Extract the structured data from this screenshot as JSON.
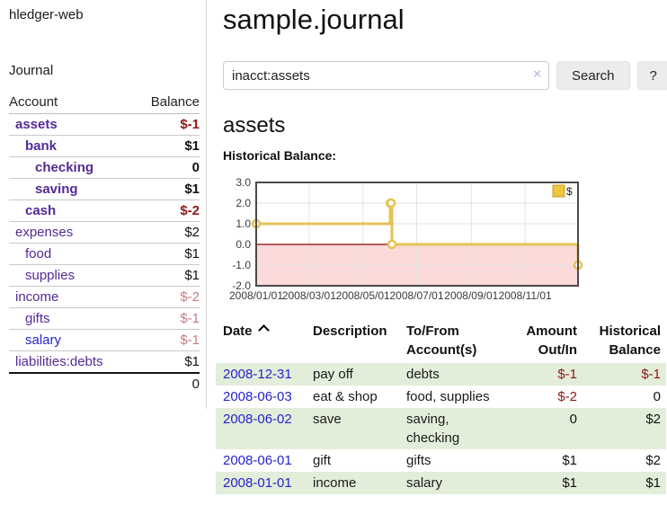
{
  "colors": {
    "link_purple": "#542a96",
    "link_blue": "#2323cc",
    "neg_strong": "#8f1717",
    "neg_faded": "#c47f7f",
    "text_normal": "#111111",
    "row_green": "#e2eeda",
    "chart_line": "#e6c155",
    "chart_fill_negative": "#fbdada",
    "zero_line": "#8f0000",
    "legend_fill": "#ecc73f",
    "legend_border": "#c99a2e"
  },
  "sidebar": {
    "app_title": "hledger-web",
    "journal_link": "Journal",
    "accounts": {
      "headers": {
        "account": "Account",
        "balance": "Balance"
      },
      "rows": [
        {
          "account": "assets",
          "balance": "$-1",
          "level": 0,
          "emphasis": true,
          "account_color": "purple",
          "balance_tone": "neg_strong"
        },
        {
          "account": "bank",
          "balance": "$1",
          "level": 1,
          "emphasis": true,
          "account_color": "purple",
          "balance_tone": "normal"
        },
        {
          "account": "checking",
          "balance": "0",
          "level": 2,
          "emphasis": true,
          "account_color": "purple",
          "balance_tone": "normal"
        },
        {
          "account": "saving",
          "balance": "$1",
          "level": 2,
          "emphasis": true,
          "account_color": "purple",
          "balance_tone": "normal"
        },
        {
          "account": "cash",
          "balance": "$-2",
          "level": 1,
          "emphasis": true,
          "account_color": "purple",
          "balance_tone": "neg_strong"
        },
        {
          "account": "expenses",
          "balance": "$2",
          "level": 0,
          "emphasis": false,
          "account_color": "purple",
          "balance_tone": "normal"
        },
        {
          "account": "food",
          "balance": "$1",
          "level": 1,
          "emphasis": false,
          "account_color": "purple",
          "balance_tone": "normal"
        },
        {
          "account": "supplies",
          "balance": "$1",
          "level": 1,
          "emphasis": false,
          "account_color": "purple",
          "balance_tone": "normal"
        },
        {
          "account": "income",
          "balance": "$-2",
          "level": 0,
          "emphasis": false,
          "account_color": "purple",
          "balance_tone": "neg_faded"
        },
        {
          "account": "gifts",
          "balance": "$-1",
          "level": 1,
          "emphasis": false,
          "account_color": "purple",
          "balance_tone": "neg_faded"
        },
        {
          "account": "salary",
          "balance": "$-1",
          "level": 1,
          "emphasis": false,
          "account_color": "blue",
          "balance_tone": "neg_faded"
        },
        {
          "account": "liabilities:debts",
          "balance": "$1",
          "level": 0,
          "emphasis": false,
          "account_color": "purple",
          "balance_tone": "normal"
        }
      ],
      "total": "0"
    }
  },
  "main": {
    "title": "sample.journal",
    "search": {
      "value": "inacct:assets",
      "clear_icon": "×",
      "search_button": "Search",
      "help_button": "?"
    },
    "account_heading": "assets",
    "chart_heading": "Historical Balance:"
  },
  "chart_data": {
    "type": "line",
    "title": "Historical Balance",
    "step": true,
    "series": [
      {
        "name": "$",
        "points": [
          [
            "2008-01-01",
            1
          ],
          [
            "2008-06-01",
            2
          ],
          [
            "2008-06-02",
            2
          ],
          [
            "2008-06-03",
            0
          ],
          [
            "2008-12-31",
            -1
          ]
        ]
      }
    ],
    "x_range": [
      "2008-01-01",
      "2008-12-31"
    ],
    "x_ticks": [
      "2008/01/01",
      "2008/03/01",
      "2008/05/01",
      "2008/07/01",
      "2008/09/01",
      "2008/11/01"
    ],
    "y_ticks": [
      "3.0",
      "2.0",
      "1.0",
      "0.0",
      "-1.0",
      "-2.0"
    ],
    "ylim": [
      -2,
      3
    ],
    "grid": true,
    "negative_region_shaded": true,
    "legend": {
      "label": "$",
      "position": "top-right"
    }
  },
  "register": {
    "headers": {
      "date": "Date",
      "description": "Description",
      "account": "To/From Account(s)",
      "amount": "Amount Out/In",
      "balance": "Historical Balance"
    },
    "sort_icon": "chevron-up-icon",
    "rows": [
      {
        "date": "2008-12-31",
        "description": "pay off",
        "accounts": "debts",
        "amount": "$-1",
        "balance": "$-1",
        "amount_tone": "neg_strong",
        "balance_tone": "neg_strong",
        "shaded": true
      },
      {
        "date": "2008-06-03",
        "description": "eat & shop",
        "accounts": "food, supplies",
        "amount": "$-2",
        "balance": "0",
        "amount_tone": "neg_strong",
        "balance_tone": "normal",
        "shaded": false
      },
      {
        "date": "2008-06-02",
        "description": "save",
        "accounts": "saving, checking",
        "amount": "0",
        "balance": "$2",
        "amount_tone": "normal",
        "balance_tone": "normal",
        "shaded": true
      },
      {
        "date": "2008-06-01",
        "description": "gift",
        "accounts": "gifts",
        "amount": "$1",
        "balance": "$2",
        "amount_tone": "normal",
        "balance_tone": "normal",
        "shaded": false
      },
      {
        "date": "2008-01-01",
        "description": "income",
        "accounts": "salary",
        "amount": "$1",
        "balance": "$1",
        "amount_tone": "normal",
        "balance_tone": "normal",
        "shaded": true
      }
    ]
  }
}
